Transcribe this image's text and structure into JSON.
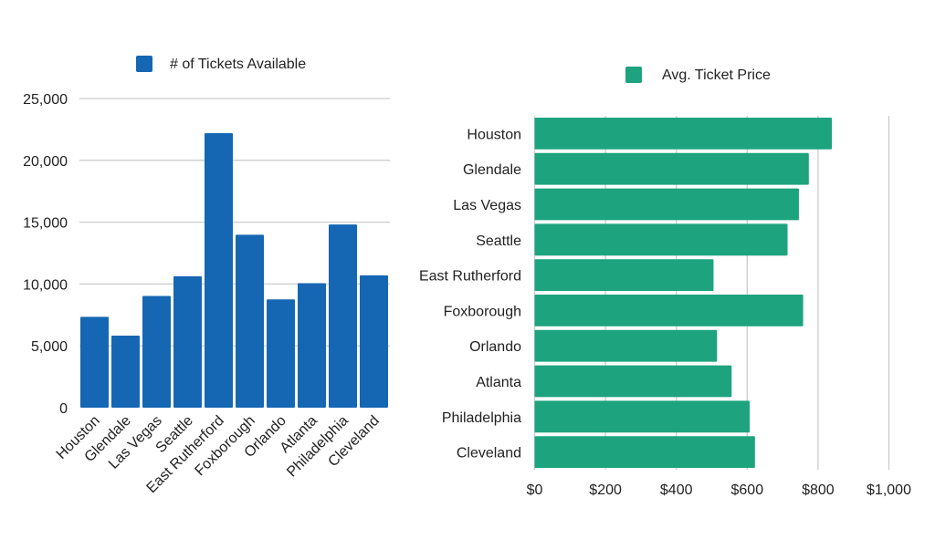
{
  "chart_data": [
    {
      "type": "bar",
      "orientation": "vertical",
      "legend": {
        "label": "# of Tickets Available",
        "position": "top"
      },
      "color": "#1667b3",
      "categories": [
        "Houston",
        "Glendale",
        "Las Vegas",
        "Seattle",
        "East Rutherford",
        "Foxborough",
        "Orlando",
        "Atlanta",
        "Philadelphia",
        "Cleveland"
      ],
      "values": [
        7350,
        5830,
        9030,
        10630,
        22200,
        13980,
        8760,
        10070,
        14810,
        10700
      ],
      "ylim": [
        0,
        25000
      ],
      "yticks": [
        0,
        5000,
        10000,
        15000,
        20000,
        25000
      ],
      "ytick_labels": [
        "0",
        "5,000",
        "10,000",
        "15,000",
        "20,000",
        "25,000"
      ],
      "grid": true,
      "title": "",
      "xlabel": "",
      "ylabel": ""
    },
    {
      "type": "bar",
      "orientation": "horizontal",
      "legend": {
        "label": "Avg. Ticket Price",
        "position": "top"
      },
      "color": "#1da37e",
      "categories": [
        "Houston",
        "Glendale",
        "Las Vegas",
        "Seattle",
        "East Rutherford",
        "Foxborough",
        "Orlando",
        "Atlanta",
        "Philadelphia",
        "Cleveland"
      ],
      "values": [
        839,
        774,
        746,
        714,
        505,
        758,
        515,
        556,
        607,
        622
      ],
      "xlim": [
        0,
        1000
      ],
      "xticks": [
        0,
        200,
        400,
        600,
        800,
        1000
      ],
      "xtick_labels": [
        "$0",
        "$200",
        "$400",
        "$600",
        "$800",
        "$1,000"
      ],
      "grid": true,
      "title": "",
      "xlabel": "",
      "ylabel": ""
    }
  ]
}
